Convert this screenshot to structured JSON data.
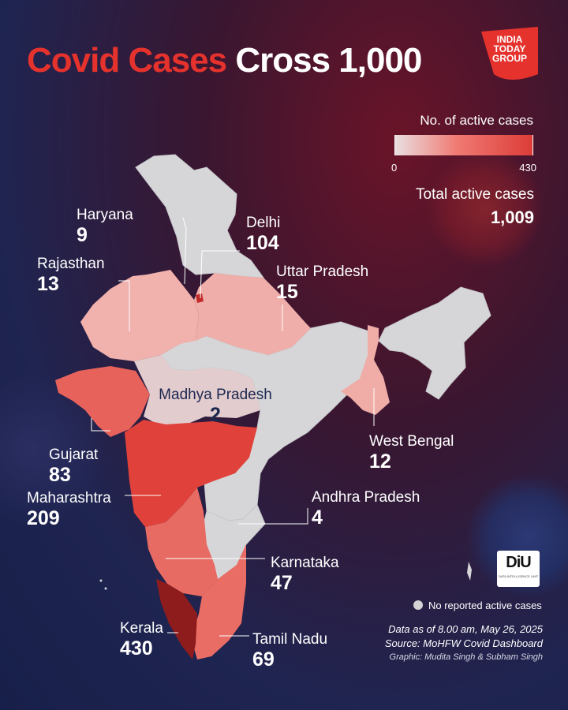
{
  "title": {
    "part1": "Covid Cases",
    "part2": "Cross 1,000"
  },
  "logo": {
    "text": "INDIA\nTODAY\nGROUP"
  },
  "legend": {
    "title": "No. of active cases",
    "min": "0",
    "max": "430",
    "range": [
      0,
      430
    ]
  },
  "total": {
    "label": "Total active cases",
    "value": "1,009"
  },
  "states": [
    {
      "name": "Haryana",
      "value": "9"
    },
    {
      "name": "Delhi",
      "value": "104"
    },
    {
      "name": "Rajasthan",
      "value": "13"
    },
    {
      "name": "Uttar Pradesh",
      "value": "15"
    },
    {
      "name": "Madhya Pradesh",
      "value": "2"
    },
    {
      "name": "Gujarat",
      "value": "83"
    },
    {
      "name": "West Bengal",
      "value": "12"
    },
    {
      "name": "Maharashtra",
      "value": "209"
    },
    {
      "name": "Andhra Pradesh",
      "value": "4"
    },
    {
      "name": "Karnataka",
      "value": "47"
    },
    {
      "name": "Kerala",
      "value": "430"
    },
    {
      "name": "Tamil Nadu",
      "value": "69"
    }
  ],
  "colors": {
    "title_red": "#e5322d",
    "no_cases": "#d4d4d4",
    "low": "#f3b2ad",
    "mid": "#e9534c",
    "high": "#a31f1d"
  },
  "brand": {
    "mark": "DiU",
    "sub": "DATA INTELLIGENCE UNIT"
  },
  "note": {
    "text": "No reported active cases"
  },
  "footer": {
    "data_as_of": "Data as of 8.00 am, May 26, 2025",
    "source": "Source: MoHFW Covid Dashboard",
    "graphic": "Graphic: Mudita Singh & Subham Singh"
  }
}
